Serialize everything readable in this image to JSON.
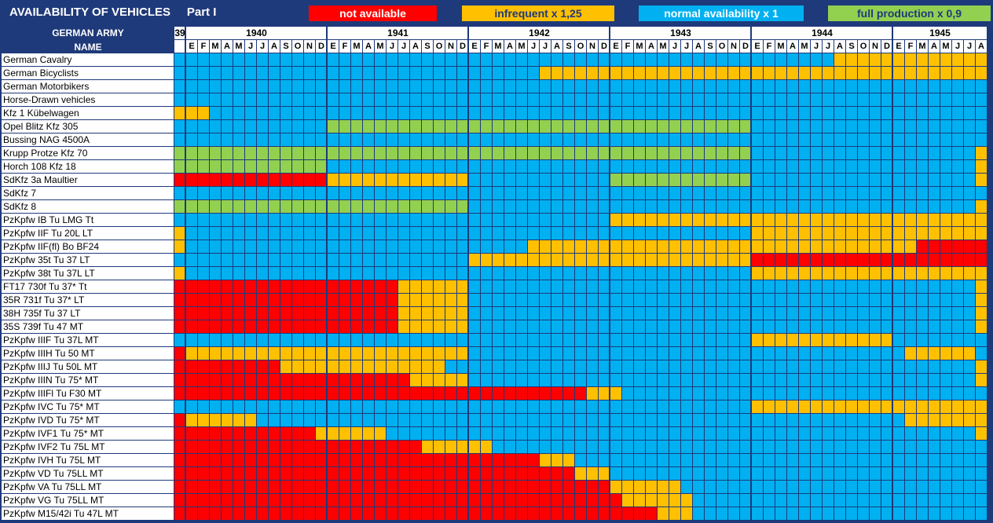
{
  "title": {
    "main": "AVAILABILITY OF VEHICLES",
    "part": "Part I"
  },
  "legend": {
    "not_available": "not available",
    "infrequent": "infrequent     x 1,25",
    "normal": "normal availability   x 1",
    "full": "full production     x 0,9"
  },
  "colors": {
    "not_available": "#ff0000",
    "infrequent": "#ffc000",
    "normal": "#00b0f0",
    "full_production": "#92d050",
    "frame": "#1f3a7a"
  },
  "header": {
    "army": "GERMAN ARMY",
    "name": "NAME"
  },
  "years": [
    "39",
    "1940",
    "1941",
    "1942",
    "1943",
    "1944",
    "1945"
  ],
  "months": [
    "E",
    "F",
    "M",
    "A",
    "M",
    "J",
    "J",
    "A",
    "S",
    "O",
    "N",
    "D"
  ],
  "months_1945": [
    "E",
    "F",
    "M",
    "A",
    "M",
    "J",
    "J",
    "A"
  ],
  "rows": [
    {
      "name": "German Cavalry",
      "segments": [
        [
          "no",
          56
        ],
        [
          "in",
          20
        ]
      ]
    },
    {
      "name": "German Bicyclists",
      "segments": [
        [
          "no",
          31
        ],
        [
          "in",
          45
        ]
      ]
    },
    {
      "name": "German Motorbikers",
      "segments": [
        [
          "no",
          76
        ]
      ]
    },
    {
      "name": "Horse-Drawn vehicles",
      "segments": [
        [
          "no",
          76
        ]
      ]
    },
    {
      "name": "Kfz 1 Kübelwagen",
      "segments": [
        [
          "in",
          3
        ],
        [
          "no",
          73
        ]
      ]
    },
    {
      "name": "Opel Blitz Kfz 305",
      "segments": [
        [
          "no",
          13
        ],
        [
          "fp",
          36
        ],
        [
          "no",
          27
        ]
      ]
    },
    {
      "name": "Bussing NAG 4500A",
      "segments": [
        [
          "no",
          76
        ]
      ]
    },
    {
      "name": "Krupp Protze Kfz 70",
      "segments": [
        [
          "fp",
          49
        ],
        [
          "no",
          19
        ],
        [
          "in",
          8
        ]
      ]
    },
    {
      "name": "Horch 108 Kfz 18",
      "segments": [
        [
          "fp",
          13
        ],
        [
          "no",
          55
        ],
        [
          "in",
          8
        ]
      ]
    },
    {
      "name": "SdKfz 3a Maultier",
      "segments": [
        [
          "na",
          13
        ],
        [
          "in",
          12
        ],
        [
          "no",
          12
        ],
        [
          "fp",
          12
        ],
        [
          "no",
          19
        ],
        [
          "in",
          8
        ]
      ]
    },
    {
      "name": "SdKfz 7",
      "segments": [
        [
          "no",
          76
        ]
      ]
    },
    {
      "name": "SdKfz 8",
      "segments": [
        [
          "fp",
          25
        ],
        [
          "no",
          43
        ],
        [
          "in",
          8
        ]
      ]
    },
    {
      "name": "PzKpfw IB Tu LMG Tt",
      "segments": [
        [
          "no",
          37
        ],
        [
          "in",
          39
        ]
      ]
    },
    {
      "name": "PzKpfw IIF Tu 20L LT",
      "segments": [
        [
          "in",
          1
        ],
        [
          "no",
          48
        ],
        [
          "in",
          27
        ]
      ]
    },
    {
      "name": "PzKpfw IIF(fl) Bo BF24",
      "segments": [
        [
          "in",
          1
        ],
        [
          "no",
          29
        ],
        [
          "in",
          33
        ],
        [
          "na",
          13
        ]
      ]
    },
    {
      "name": "PzKpfw 35t Tu 37 LT",
      "segments": [
        [
          "no",
          25
        ],
        [
          "in",
          24
        ],
        [
          "na",
          27
        ]
      ]
    },
    {
      "name": "PzKpfw 38t Tu 37L LT",
      "segments": [
        [
          "in",
          1
        ],
        [
          "no",
          48
        ],
        [
          "in",
          27
        ]
      ]
    },
    {
      "name": "FT17 730f Tu 37* Tt",
      "segments": [
        [
          "na",
          19
        ],
        [
          "in",
          6
        ],
        [
          "no",
          43
        ],
        [
          "in",
          8
        ]
      ]
    },
    {
      "name": "35R 731f Tu 37* LT",
      "segments": [
        [
          "na",
          19
        ],
        [
          "in",
          6
        ],
        [
          "no",
          43
        ],
        [
          "in",
          8
        ]
      ]
    },
    {
      "name": "38H 735f Tu 37 LT",
      "segments": [
        [
          "na",
          19
        ],
        [
          "in",
          6
        ],
        [
          "no",
          43
        ],
        [
          "in",
          8
        ]
      ]
    },
    {
      "name": "35S 739f Tu 47 MT",
      "segments": [
        [
          "na",
          19
        ],
        [
          "in",
          6
        ],
        [
          "no",
          43
        ],
        [
          "in",
          8
        ]
      ]
    },
    {
      "name": "PzKpfw IIIF Tu 37L MT",
      "segments": [
        [
          "no",
          49
        ],
        [
          "in",
          12
        ],
        [
          "no",
          15
        ]
      ]
    },
    {
      "name": "PzKpfw IIIH Tu 50 MT",
      "segments": [
        [
          "na",
          1
        ],
        [
          "in",
          24
        ],
        [
          "no",
          37
        ],
        [
          "in",
          6
        ],
        [
          "no",
          8
        ]
      ]
    },
    {
      "name": "PzKpfw IIIJ Tu 50L MT",
      "segments": [
        [
          "na",
          9
        ],
        [
          "in",
          14
        ],
        [
          "no",
          45
        ],
        [
          "in",
          8
        ]
      ]
    },
    {
      "name": "PzKpfw IIIN Tu 75* MT",
      "segments": [
        [
          "na",
          20
        ],
        [
          "in",
          5
        ],
        [
          "no",
          43
        ],
        [
          "in",
          8
        ]
      ]
    },
    {
      "name": "PzKpfw IIIFl Tu F30 MT",
      "segments": [
        [
          "na",
          35
        ],
        [
          "in",
          3
        ],
        [
          "no",
          38
        ]
      ]
    },
    {
      "name": "PzKpfw IVC Tu 75* MT",
      "segments": [
        [
          "no",
          49
        ],
        [
          "in",
          27
        ]
      ]
    },
    {
      "name": "PzKpfw IVD Tu 75* MT",
      "segments": [
        [
          "na",
          1
        ],
        [
          "in",
          6
        ],
        [
          "no",
          55
        ],
        [
          "in",
          14
        ]
      ]
    },
    {
      "name": "PzKpfw IVF1 Tu 75* MT",
      "segments": [
        [
          "na",
          12
        ],
        [
          "in",
          6
        ],
        [
          "no",
          50
        ],
        [
          "in",
          8
        ]
      ]
    },
    {
      "name": "PzKpfw IVF2 Tu 75L MT",
      "segments": [
        [
          "na",
          21
        ],
        [
          "in",
          6
        ],
        [
          "no",
          49
        ]
      ]
    },
    {
      "name": "PzKpfw IVH Tu 75L MT",
      "segments": [
        [
          "na",
          31
        ],
        [
          "in",
          3
        ],
        [
          "no",
          42
        ]
      ]
    },
    {
      "name": "PzKpfw VD Tu 75LL MT",
      "segments": [
        [
          "na",
          34
        ],
        [
          "in",
          3
        ],
        [
          "no",
          39
        ]
      ]
    },
    {
      "name": "PzKpfw VA Tu 75LL MT",
      "segments": [
        [
          "na",
          37
        ],
        [
          "in",
          6
        ],
        [
          "no",
          33
        ]
      ]
    },
    {
      "name": "PzKpfw VG Tu 75LL MT",
      "segments": [
        [
          "na",
          38
        ],
        [
          "in",
          6
        ],
        [
          "no",
          32
        ]
      ]
    },
    {
      "name": "PzKpfw M15/42i Tu 47L MT",
      "segments": [
        [
          "na",
          41
        ],
        [
          "in",
          3
        ],
        [
          "no",
          32
        ]
      ]
    }
  ]
}
